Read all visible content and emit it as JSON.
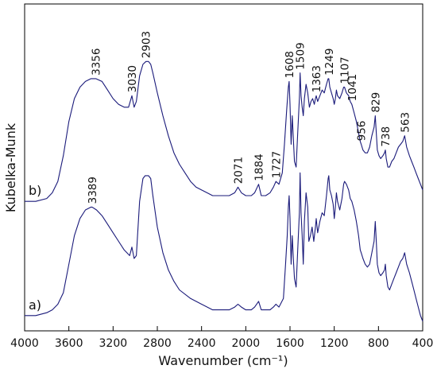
{
  "chart_data": {
    "type": "line",
    "xlabel": "Wavenumber (cm⁻¹)",
    "ylabel": "Kubelka-Munk",
    "xlim": [
      4000,
      400
    ],
    "x_reversed": true,
    "x_ticks": [
      4000,
      3600,
      3200,
      2800,
      2400,
      2000,
      1600,
      1200,
      800,
      400
    ],
    "ylim": [
      0,
      1
    ],
    "y_ticks_shown": false,
    "grid": false,
    "line_color": "#1a1a7a",
    "series": [
      {
        "label": "a)",
        "points": [
          [
            4000,
            0.02
          ],
          [
            3900,
            0.02
          ],
          [
            3800,
            0.03
          ],
          [
            3750,
            0.04
          ],
          [
            3700,
            0.06
          ],
          [
            3650,
            0.1
          ],
          [
            3600,
            0.2
          ],
          [
            3550,
            0.3
          ],
          [
            3500,
            0.36
          ],
          [
            3450,
            0.39
          ],
          [
            3400,
            0.4
          ],
          [
            3389,
            0.4
          ],
          [
            3350,
            0.39
          ],
          [
            3300,
            0.37
          ],
          [
            3250,
            0.34
          ],
          [
            3200,
            0.31
          ],
          [
            3150,
            0.28
          ],
          [
            3100,
            0.25
          ],
          [
            3050,
            0.23
          ],
          [
            3030,
            0.26
          ],
          [
            3010,
            0.22
          ],
          [
            2990,
            0.23
          ],
          [
            2960,
            0.42
          ],
          [
            2930,
            0.5
          ],
          [
            2910,
            0.51
          ],
          [
            2880,
            0.51
          ],
          [
            2860,
            0.5
          ],
          [
            2840,
            0.44
          ],
          [
            2800,
            0.33
          ],
          [
            2750,
            0.24
          ],
          [
            2700,
            0.18
          ],
          [
            2650,
            0.14
          ],
          [
            2600,
            0.11
          ],
          [
            2500,
            0.08
          ],
          [
            2400,
            0.06
          ],
          [
            2300,
            0.04
          ],
          [
            2200,
            0.04
          ],
          [
            2150,
            0.04
          ],
          [
            2100,
            0.05
          ],
          [
            2071,
            0.06
          ],
          [
            2040,
            0.05
          ],
          [
            2000,
            0.04
          ],
          [
            1950,
            0.04
          ],
          [
            1920,
            0.05
          ],
          [
            1884,
            0.07
          ],
          [
            1860,
            0.04
          ],
          [
            1820,
            0.04
          ],
          [
            1780,
            0.04
          ],
          [
            1750,
            0.05
          ],
          [
            1727,
            0.06
          ],
          [
            1700,
            0.05
          ],
          [
            1660,
            0.08
          ],
          [
            1640,
            0.2
          ],
          [
            1625,
            0.3
          ],
          [
            1615,
            0.4
          ],
          [
            1608,
            0.44
          ],
          [
            1600,
            0.36
          ],
          [
            1590,
            0.2
          ],
          [
            1580,
            0.3
          ],
          [
            1570,
            0.22
          ],
          [
            1560,
            0.15
          ],
          [
            1545,
            0.12
          ],
          [
            1530,
            0.25
          ],
          [
            1515,
            0.38
          ],
          [
            1509,
            0.52
          ],
          [
            1500,
            0.38
          ],
          [
            1490,
            0.3
          ],
          [
            1480,
            0.2
          ],
          [
            1470,
            0.35
          ],
          [
            1455,
            0.45
          ],
          [
            1440,
            0.4
          ],
          [
            1430,
            0.28
          ],
          [
            1415,
            0.3
          ],
          [
            1400,
            0.33
          ],
          [
            1385,
            0.28
          ],
          [
            1370,
            0.33
          ],
          [
            1363,
            0.36
          ],
          [
            1350,
            0.31
          ],
          [
            1330,
            0.35
          ],
          [
            1310,
            0.38
          ],
          [
            1290,
            0.37
          ],
          [
            1270,
            0.44
          ],
          [
            1255,
            0.5
          ],
          [
            1249,
            0.51
          ],
          [
            1240,
            0.46
          ],
          [
            1225,
            0.44
          ],
          [
            1210,
            0.41
          ],
          [
            1200,
            0.36
          ],
          [
            1190,
            0.4
          ],
          [
            1180,
            0.45
          ],
          [
            1170,
            0.42
          ],
          [
            1150,
            0.39
          ],
          [
            1130,
            0.43
          ],
          [
            1115,
            0.48
          ],
          [
            1107,
            0.49
          ],
          [
            1090,
            0.48
          ],
          [
            1070,
            0.46
          ],
          [
            1055,
            0.43
          ],
          [
            1041,
            0.42
          ],
          [
            1020,
            0.39
          ],
          [
            1000,
            0.35
          ],
          [
            980,
            0.3
          ],
          [
            965,
            0.25
          ],
          [
            956,
            0.24
          ],
          [
            940,
            0.22
          ],
          [
            920,
            0.2
          ],
          [
            900,
            0.19
          ],
          [
            880,
            0.2
          ],
          [
            860,
            0.24
          ],
          [
            840,
            0.28
          ],
          [
            829,
            0.35
          ],
          [
            820,
            0.28
          ],
          [
            810,
            0.2
          ],
          [
            795,
            0.17
          ],
          [
            780,
            0.16
          ],
          [
            760,
            0.17
          ],
          [
            745,
            0.18
          ],
          [
            738,
            0.2
          ],
          [
            730,
            0.16
          ],
          [
            715,
            0.12
          ],
          [
            700,
            0.11
          ],
          [
            680,
            0.13
          ],
          [
            660,
            0.15
          ],
          [
            640,
            0.17
          ],
          [
            620,
            0.19
          ],
          [
            600,
            0.21
          ],
          [
            580,
            0.22
          ],
          [
            563,
            0.24
          ],
          [
            545,
            0.2
          ],
          [
            520,
            0.17
          ],
          [
            500,
            0.14
          ],
          [
            480,
            0.11
          ],
          [
            460,
            0.08
          ],
          [
            440,
            0.05
          ],
          [
            420,
            0.02
          ],
          [
            400,
            0.0
          ]
        ]
      },
      {
        "label": "b)",
        "points": [
          [
            4000,
            0.42
          ],
          [
            3900,
            0.42
          ],
          [
            3800,
            0.43
          ],
          [
            3750,
            0.45
          ],
          [
            3700,
            0.49
          ],
          [
            3650,
            0.58
          ],
          [
            3600,
            0.7
          ],
          [
            3550,
            0.78
          ],
          [
            3500,
            0.82
          ],
          [
            3450,
            0.84
          ],
          [
            3400,
            0.85
          ],
          [
            3356,
            0.85
          ],
          [
            3300,
            0.84
          ],
          [
            3250,
            0.81
          ],
          [
            3200,
            0.78
          ],
          [
            3150,
            0.76
          ],
          [
            3100,
            0.75
          ],
          [
            3060,
            0.75
          ],
          [
            3030,
            0.79
          ],
          [
            3010,
            0.75
          ],
          [
            2990,
            0.77
          ],
          [
            2960,
            0.86
          ],
          [
            2930,
            0.9
          ],
          [
            2903,
            0.91
          ],
          [
            2880,
            0.91
          ],
          [
            2860,
            0.9
          ],
          [
            2840,
            0.87
          ],
          [
            2800,
            0.8
          ],
          [
            2750,
            0.72
          ],
          [
            2700,
            0.65
          ],
          [
            2650,
            0.59
          ],
          [
            2600,
            0.55
          ],
          [
            2550,
            0.52
          ],
          [
            2500,
            0.49
          ],
          [
            2450,
            0.47
          ],
          [
            2400,
            0.46
          ],
          [
            2350,
            0.45
          ],
          [
            2300,
            0.44
          ],
          [
            2250,
            0.44
          ],
          [
            2200,
            0.44
          ],
          [
            2150,
            0.44
          ],
          [
            2100,
            0.45
          ],
          [
            2071,
            0.47
          ],
          [
            2040,
            0.45
          ],
          [
            2000,
            0.44
          ],
          [
            1950,
            0.44
          ],
          [
            1920,
            0.45
          ],
          [
            1884,
            0.48
          ],
          [
            1860,
            0.44
          ],
          [
            1820,
            0.44
          ],
          [
            1780,
            0.45
          ],
          [
            1750,
            0.47
          ],
          [
            1727,
            0.49
          ],
          [
            1700,
            0.48
          ],
          [
            1670,
            0.52
          ],
          [
            1650,
            0.62
          ],
          [
            1630,
            0.74
          ],
          [
            1615,
            0.82
          ],
          [
            1608,
            0.84
          ],
          [
            1600,
            0.76
          ],
          [
            1590,
            0.62
          ],
          [
            1580,
            0.72
          ],
          [
            1570,
            0.64
          ],
          [
            1560,
            0.56
          ],
          [
            1545,
            0.54
          ],
          [
            1530,
            0.66
          ],
          [
            1515,
            0.78
          ],
          [
            1509,
            0.87
          ],
          [
            1500,
            0.79
          ],
          [
            1490,
            0.75
          ],
          [
            1480,
            0.72
          ],
          [
            1470,
            0.78
          ],
          [
            1455,
            0.83
          ],
          [
            1440,
            0.8
          ],
          [
            1425,
            0.75
          ],
          [
            1410,
            0.77
          ],
          [
            1395,
            0.78
          ],
          [
            1380,
            0.76
          ],
          [
            1370,
            0.78
          ],
          [
            1363,
            0.79
          ],
          [
            1350,
            0.77
          ],
          [
            1330,
            0.79
          ],
          [
            1310,
            0.81
          ],
          [
            1290,
            0.8
          ],
          [
            1270,
            0.83
          ],
          [
            1255,
            0.85
          ],
          [
            1249,
            0.85
          ],
          [
            1240,
            0.82
          ],
          [
            1225,
            0.8
          ],
          [
            1210,
            0.78
          ],
          [
            1200,
            0.76
          ],
          [
            1190,
            0.78
          ],
          [
            1180,
            0.81
          ],
          [
            1170,
            0.79
          ],
          [
            1150,
            0.78
          ],
          [
            1130,
            0.8
          ],
          [
            1115,
            0.82
          ],
          [
            1107,
            0.82
          ],
          [
            1090,
            0.8
          ],
          [
            1070,
            0.79
          ],
          [
            1055,
            0.77
          ],
          [
            1041,
            0.76
          ],
          [
            1020,
            0.73
          ],
          [
            1000,
            0.7
          ],
          [
            980,
            0.66
          ],
          [
            965,
            0.63
          ],
          [
            956,
            0.62
          ],
          [
            940,
            0.6
          ],
          [
            920,
            0.59
          ],
          [
            900,
            0.59
          ],
          [
            880,
            0.61
          ],
          [
            860,
            0.65
          ],
          [
            840,
            0.68
          ],
          [
            829,
            0.72
          ],
          [
            820,
            0.66
          ],
          [
            810,
            0.6
          ],
          [
            795,
            0.58
          ],
          [
            780,
            0.57
          ],
          [
            760,
            0.58
          ],
          [
            745,
            0.59
          ],
          [
            738,
            0.6
          ],
          [
            730,
            0.57
          ],
          [
            715,
            0.54
          ],
          [
            700,
            0.54
          ],
          [
            680,
            0.56
          ],
          [
            660,
            0.57
          ],
          [
            640,
            0.59
          ],
          [
            620,
            0.61
          ],
          [
            600,
            0.62
          ],
          [
            580,
            0.63
          ],
          [
            563,
            0.65
          ],
          [
            545,
            0.61
          ],
          [
            520,
            0.58
          ],
          [
            500,
            0.56
          ],
          [
            480,
            0.54
          ],
          [
            460,
            0.52
          ],
          [
            440,
            0.5
          ],
          [
            420,
            0.48
          ],
          [
            400,
            0.46
          ]
        ]
      }
    ],
    "annotations": [
      {
        "series": "b)",
        "text": "3356",
        "x": 3356,
        "y": 0.85
      },
      {
        "series": "b)",
        "text": "3030",
        "x": 3030,
        "y": 0.79
      },
      {
        "series": "b)",
        "text": "2903",
        "x": 2903,
        "y": 0.91
      },
      {
        "series": "b)",
        "text": "2071",
        "x": 2071,
        "y": 0.47
      },
      {
        "series": "b)",
        "text": "1884",
        "x": 1884,
        "y": 0.48
      },
      {
        "series": "b)",
        "text": "1727",
        "x": 1727,
        "y": 0.49
      },
      {
        "series": "b)",
        "text": "1608",
        "x": 1608,
        "y": 0.84
      },
      {
        "series": "b)",
        "text": "1509",
        "x": 1509,
        "y": 0.87
      },
      {
        "series": "b)",
        "text": "1363",
        "x": 1363,
        "y": 0.79
      },
      {
        "series": "b)",
        "text": "1249",
        "x": 1249,
        "y": 0.85
      },
      {
        "series": "b)",
        "text": "1107",
        "x": 1107,
        "y": 0.82
      },
      {
        "series": "b)",
        "text": "1041",
        "x": 1041,
        "y": 0.76
      },
      {
        "series": "b)",
        "text": "956",
        "x": 956,
        "y": 0.62
      },
      {
        "series": "b)",
        "text": "829",
        "x": 829,
        "y": 0.72
      },
      {
        "series": "b)",
        "text": "738",
        "x": 738,
        "y": 0.6
      },
      {
        "series": "b)",
        "text": "563",
        "x": 563,
        "y": 0.65
      },
      {
        "series": "a)",
        "text": "3389",
        "x": 3389,
        "y": 0.4
      }
    ]
  }
}
